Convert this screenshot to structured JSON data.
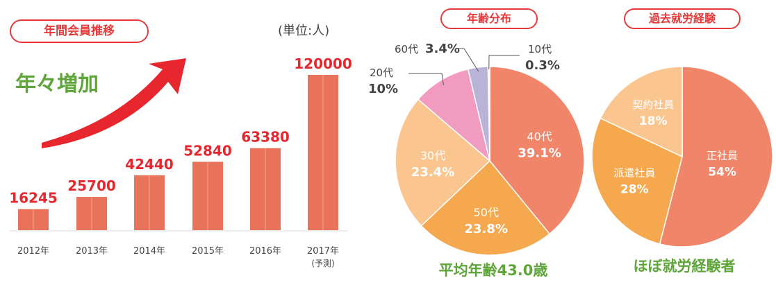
{
  "bar_section": {
    "title": "年間会員推移",
    "unit": "(単位:人)",
    "growth_label": "年々増加"
  },
  "age_section": {
    "title": "年齢分布",
    "summary": "平均年齢43.0歳"
  },
  "experience_section": {
    "title": "過去就労経験",
    "summary": "ほぼ就労経験者"
  },
  "colors": {
    "bar": "#e8735a",
    "bar_value": "#e8262e",
    "pill_border": "#e83a3a",
    "green_text": "#5ea53a",
    "arrow": "#e8262e"
  },
  "chart_data": [
    {
      "type": "bar",
      "title": "年間会員推移",
      "categories": [
        "2012年",
        "2013年",
        "2014年",
        "2015年",
        "2016年",
        "2017年"
      ],
      "category_notes": [
        "",
        "",
        "",
        "",
        "",
        "(予測)"
      ],
      "values": [
        16245,
        25700,
        42440,
        52840,
        63380,
        120000
      ],
      "ylabel": "",
      "unit": "(単位:人)",
      "ylim": [
        0,
        120000
      ],
      "grid": false
    },
    {
      "type": "pie",
      "title": "年齢分布",
      "labels": [
        "40代",
        "50代",
        "30代",
        "20代",
        "60代",
        "10代"
      ],
      "values": [
        39.1,
        23.8,
        23.4,
        10.0,
        3.4,
        0.3
      ],
      "value_labels": [
        "39.1%",
        "23.8%",
        "23.4%",
        "10%",
        "3.4%",
        "0.3%"
      ],
      "colors": [
        "#f0856a",
        "#f6a84e",
        "#fbc58f",
        "#f29bc0",
        "#b9b3d8",
        "#f4f4f4"
      ]
    },
    {
      "type": "pie",
      "title": "過去就労経験",
      "labels": [
        "正社員",
        "派遣社員",
        "契約社員"
      ],
      "values": [
        54,
        28,
        18
      ],
      "value_labels": [
        "54%",
        "28%",
        "18%"
      ],
      "colors": [
        "#f0856a",
        "#f6a84e",
        "#fbc58f"
      ]
    }
  ]
}
